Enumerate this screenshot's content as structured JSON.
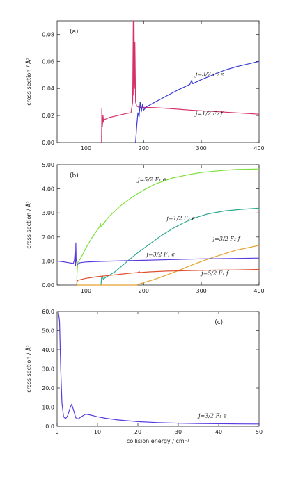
{
  "chart_data": [
    {
      "type": "line",
      "panel_label": "(a)",
      "ylabel": "cross section / Å²",
      "xlim": [
        50,
        400
      ],
      "ylim": [
        0,
        0.09
      ],
      "x_ticks": [
        100,
        200,
        300,
        400
      ],
      "x_tick_labels": [
        "100",
        "200",
        "300",
        "400"
      ],
      "y_ticks": [
        0,
        0.02,
        0.04,
        0.06,
        0.08
      ],
      "y_tick_labels": [
        "0.00",
        "0.02",
        "0.04",
        "0.06",
        "0.08"
      ],
      "series": [
        {
          "name": "j=1/2 F₂ f",
          "color": "#d6306a",
          "points": [
            [
              127,
              0
            ],
            [
              127.5,
              0.025
            ],
            [
              128.5,
              0.012
            ],
            [
              129.5,
              0.02
            ],
            [
              130.5,
              0.015
            ],
            [
              132,
              0.017
            ],
            [
              140,
              0.0185
            ],
            [
              150,
              0.0195
            ],
            [
              160,
              0.0205
            ],
            [
              170,
              0.0215
            ],
            [
              178,
              0.022
            ],
            [
              181,
              0.03
            ],
            [
              182,
              0.092
            ],
            [
              182.7,
              0.035
            ],
            [
              183.4,
              0.09
            ],
            [
              184.1,
              0.04
            ],
            [
              184.8,
              0.074
            ],
            [
              186,
              0.03
            ],
            [
              188,
              0.027
            ],
            [
              192,
              0.026
            ],
            [
              200,
              0.026
            ],
            [
              220,
              0.0258
            ],
            [
              250,
              0.025
            ],
            [
              280,
              0.024
            ],
            [
              300,
              0.0235
            ],
            [
              330,
              0.0228
            ],
            [
              360,
              0.022
            ],
            [
              400,
              0.021
            ]
          ]
        },
        {
          "name": "j=3/2 F₂ e",
          "color": "#3a3ad6",
          "points": [
            [
              186,
              0
            ],
            [
              188,
              0.012
            ],
            [
              190,
              0.022
            ],
            [
              192,
              0.019
            ],
            [
              194,
              0.03
            ],
            [
              196,
              0.023
            ],
            [
              198,
              0.028
            ],
            [
              200,
              0.024
            ],
            [
              205,
              0.0265
            ],
            [
              220,
              0.03
            ],
            [
              240,
              0.0345
            ],
            [
              260,
              0.039
            ],
            [
              280,
              0.043
            ],
            [
              283,
              0.046
            ],
            [
              285,
              0.0435
            ],
            [
              300,
              0.0465
            ],
            [
              320,
              0.05
            ],
            [
              340,
              0.0535
            ],
            [
              360,
              0.056
            ],
            [
              380,
              0.058
            ],
            [
              400,
              0.06
            ]
          ]
        }
      ],
      "annotations": [
        {
          "text": "j=3/2 F₂ e",
          "x": 290,
          "y": 0.049
        },
        {
          "text": "j=1/2 F₂ f",
          "x": 290,
          "y": 0.02
        }
      ]
    },
    {
      "type": "line",
      "panel_label": "(b)",
      "ylabel": "cross section / Å²",
      "xlim": [
        50,
        400
      ],
      "ylim": [
        0,
        5
      ],
      "x_ticks": [
        100,
        200,
        300,
        400
      ],
      "x_tick_labels": [
        "100",
        "200",
        "300",
        "400"
      ],
      "y_ticks": [
        0,
        1,
        2,
        3,
        4,
        5
      ],
      "y_tick_labels": [
        "0.00",
        "1.00",
        "2.00",
        "3.00",
        "4.00",
        "5.00"
      ],
      "series": [
        {
          "name": "j=5/2 F₁ e",
          "color": "#7de03a",
          "points": [
            [
              84,
              0
            ],
            [
              84.5,
              0.5
            ],
            [
              86,
              0.95
            ],
            [
              90,
              1.08
            ],
            [
              95,
              1.3
            ],
            [
              100,
              1.55
            ],
            [
              110,
              1.95
            ],
            [
              120,
              2.3
            ],
            [
              124,
              2.45
            ],
            [
              125,
              2.58
            ],
            [
              126,
              2.42
            ],
            [
              140,
              2.85
            ],
            [
              160,
              3.3
            ],
            [
              180,
              3.65
            ],
            [
              190,
              3.8
            ],
            [
              200,
              3.95
            ],
            [
              220,
              4.2
            ],
            [
              250,
              4.45
            ],
            [
              280,
              4.6
            ],
            [
              300,
              4.68
            ],
            [
              330,
              4.75
            ],
            [
              360,
              4.8
            ],
            [
              400,
              4.82
            ]
          ]
        },
        {
          "name": "j=1/2 F₂ e",
          "color": "#2aa890",
          "points": [
            [
              126,
              0
            ],
            [
              127,
              0.3
            ],
            [
              128,
              0.4
            ],
            [
              130,
              0.25
            ],
            [
              135,
              0.33
            ],
            [
              150,
              0.55
            ],
            [
              170,
              0.95
            ],
            [
              190,
              1.35
            ],
            [
              210,
              1.7
            ],
            [
              230,
              2.05
            ],
            [
              250,
              2.35
            ],
            [
              270,
              2.6
            ],
            [
              290,
              2.8
            ],
            [
              310,
              2.95
            ],
            [
              340,
              3.08
            ],
            [
              370,
              3.15
            ],
            [
              400,
              3.2
            ]
          ]
        },
        {
          "name": "j=3/2 F₂ f",
          "color": "#e8a030",
          "points": [
            [
              84,
              0
            ],
            [
              84.2,
              0.05
            ],
            [
              84.4,
              0
            ],
            [
              188,
              0
            ],
            [
              190,
              0.02
            ],
            [
              200,
              0.1
            ],
            [
              220,
              0.25
            ],
            [
              240,
              0.42
            ],
            [
              260,
              0.6
            ],
            [
              280,
              0.8
            ],
            [
              300,
              0.98
            ],
            [
              320,
              1.15
            ],
            [
              340,
              1.3
            ],
            [
              360,
              1.45
            ],
            [
              380,
              1.55
            ],
            [
              400,
              1.65
            ]
          ]
        },
        {
          "name": "j=3/2 F₁ e",
          "color": "#5a3ae0",
          "points": [
            [
              50,
              1.0
            ],
            [
              60,
              0.97
            ],
            [
              70,
              0.93
            ],
            [
              78,
              0.9
            ],
            [
              80,
              1.05
            ],
            [
              81,
              1.35
            ],
            [
              82,
              0.8
            ],
            [
              82.5,
              1.75
            ],
            [
              83,
              1.1
            ],
            [
              84,
              0.95
            ],
            [
              85,
              0.85
            ],
            [
              87,
              0.9
            ],
            [
              90,
              0.93
            ],
            [
              100,
              0.96
            ],
            [
              120,
              0.98
            ],
            [
              150,
              1.0
            ],
            [
              200,
              1.03
            ],
            [
              250,
              1.06
            ],
            [
              300,
              1.09
            ],
            [
              350,
              1.1
            ],
            [
              400,
              1.12
            ]
          ]
        },
        {
          "name": "j=5/2 F₁ f",
          "color": "#e05030",
          "points": [
            [
              84,
              0
            ],
            [
              84.5,
              0.15
            ],
            [
              86,
              0.2
            ],
            [
              100,
              0.28
            ],
            [
              120,
              0.35
            ],
            [
              140,
              0.4
            ],
            [
              160,
              0.45
            ],
            [
              180,
              0.5
            ],
            [
              190,
              0.52
            ],
            [
              192,
              0.56
            ],
            [
              194,
              0.52
            ],
            [
              210,
              0.55
            ],
            [
              240,
              0.58
            ],
            [
              280,
              0.6
            ],
            [
              320,
              0.62
            ],
            [
              360,
              0.63
            ],
            [
              400,
              0.65
            ]
          ]
        }
      ],
      "annotations": [
        {
          "text": "j=5/2 F₁ e",
          "x": 190,
          "y": 4.3
        },
        {
          "text": "j=1/2 F₂ e",
          "x": 240,
          "y": 2.7
        },
        {
          "text": "j=3/2 F₂ f",
          "x": 320,
          "y": 1.85
        },
        {
          "text": "j=3/2 F₁ e",
          "x": 205,
          "y": 1.2
        },
        {
          "text": "j=5/2 F₁ f",
          "x": 300,
          "y": 0.42
        }
      ]
    },
    {
      "type": "line",
      "panel_label": "(c)",
      "ylabel": "cross section / Å²",
      "xlabel": "collision energy / cm⁻¹",
      "xlim": [
        0,
        50
      ],
      "ylim": [
        0,
        60
      ],
      "x_ticks": [
        0,
        10,
        20,
        30,
        40,
        50
      ],
      "x_tick_labels": [
        "0",
        "10",
        "20",
        "30",
        "40",
        "50"
      ],
      "y_ticks": [
        0,
        10,
        20,
        30,
        40,
        50,
        60
      ],
      "y_tick_labels": [
        "0.0",
        "10.0",
        "20.0",
        "30.0",
        "40.0",
        "50.0",
        "60.0"
      ],
      "series": [
        {
          "name": "j=3/2 F₁ e",
          "color": "#5a3ae0",
          "points": [
            [
              0.3,
              60
            ],
            [
              0.6,
              55
            ],
            [
              0.9,
              30
            ],
            [
              1.2,
              12
            ],
            [
              1.6,
              5
            ],
            [
              2.1,
              4
            ],
            [
              2.6,
              5.5
            ],
            [
              3.2,
              9.5
            ],
            [
              3.6,
              11.5
            ],
            [
              4.0,
              9
            ],
            [
              4.6,
              4.5
            ],
            [
              5.2,
              3.8
            ],
            [
              6.0,
              5
            ],
            [
              7.0,
              6.3
            ],
            [
              8.0,
              6
            ],
            [
              10,
              5
            ],
            [
              12,
              4.2
            ],
            [
              15,
              3.3
            ],
            [
              20,
              2.4
            ],
            [
              25,
              1.9
            ],
            [
              30,
              1.6
            ],
            [
              35,
              1.4
            ],
            [
              40,
              1.3
            ],
            [
              45,
              1.2
            ],
            [
              50,
              1.15
            ]
          ]
        }
      ],
      "annotations": [
        {
          "text": "j=3/2 F₁ e",
          "x": 35,
          "y": 4.5
        }
      ]
    }
  ]
}
